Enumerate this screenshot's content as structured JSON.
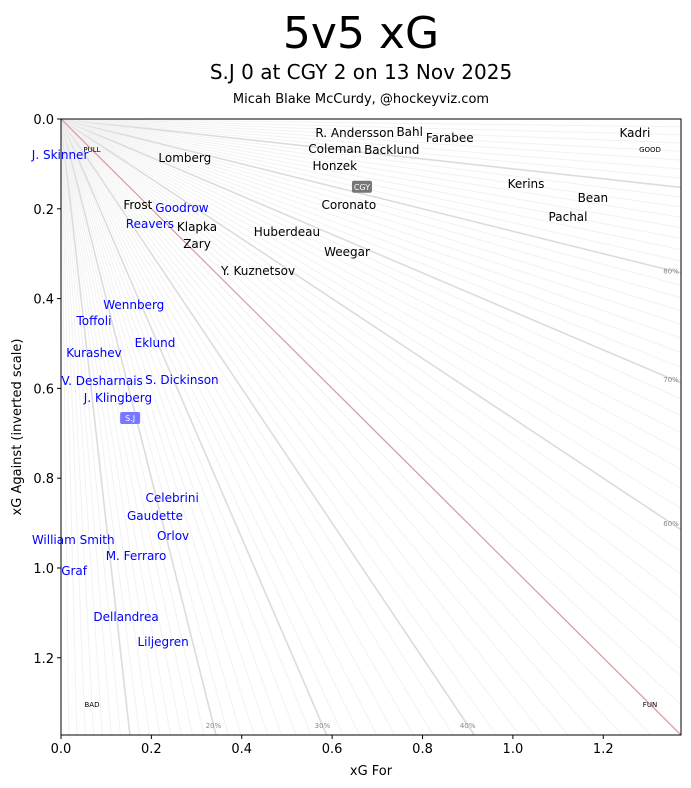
{
  "title": "5v5 xG",
  "subtitle": "S.J 0 at CGY 2 on 13 Nov 2025",
  "byline": "Micah Blake McCurdy, @hockeyviz.com",
  "chart_data": {
    "type": "scatter",
    "xlabel": "xG For",
    "ylabel": "xG Against (inverted scale)",
    "xlim": [
      0,
      1.372
    ],
    "ylim": [
      1.372,
      0
    ],
    "y_inverted": true,
    "xticks": [
      "0.0",
      "0.2",
      "0.4",
      "0.6",
      "0.8",
      "1.0",
      "1.2"
    ],
    "yticks": [
      "0.0",
      "0.2",
      "0.4",
      "0.6",
      "0.8",
      "1.0",
      "1.2"
    ],
    "grid": false,
    "colors": {
      "CGY": "#000000",
      "SJ": "#0000ff",
      "even_line": "#d9a0a0",
      "contour": "#dddddd"
    },
    "corner_labels": {
      "top_left": "PULL",
      "top_right": "GOOD",
      "bottom_left": "BAD",
      "bottom_right": "FUN"
    },
    "percent_labels": [
      {
        "label": "20%",
        "p": 0.2
      },
      {
        "label": "30%",
        "p": 0.3
      },
      {
        "label": "40%",
        "p": 0.4
      },
      {
        "label": "60%",
        "p": 0.6
      },
      {
        "label": "70%",
        "p": 0.7
      },
      {
        "label": "80%",
        "p": 0.8
      }
    ],
    "team_badges": [
      {
        "label": "CGY",
        "team": "CGY",
        "x": 0.666,
        "y": 0.151
      },
      {
        "label": "S.J",
        "team": "SJ",
        "x": 0.153,
        "y": 0.666
      }
    ],
    "series": [
      {
        "name": "CGY",
        "points": [
          {
            "label": "R. Andersson",
            "x": 0.65,
            "y": 0.031
          },
          {
            "label": "Bahl",
            "x": 0.723,
            "y": 0.029
          },
          {
            "label": "Coleman",
            "x": 0.606,
            "y": 0.045
          },
          {
            "label": "Honzek",
            "x": 0.606,
            "y": 0.078
          },
          {
            "label": "Backlund",
            "x": 0.723,
            "y": 0.062
          },
          {
            "label": "Farabee",
            "x": 0.847,
            "y": 0.042
          },
          {
            "label": "Kadri",
            "x": 1.27,
            "y": 0.031
          },
          {
            "label": "Lomberg",
            "x": 0.274,
            "y": 0.087
          },
          {
            "label": "Kerins",
            "x": 1.029,
            "y": 0.145
          },
          {
            "label": "Bean",
            "x": 1.177,
            "y": 0.176
          },
          {
            "label": "Pachal",
            "x": 1.122,
            "y": 0.218
          },
          {
            "label": "Coronato",
            "x": 0.637,
            "y": 0.192
          },
          {
            "label": "Frost",
            "x": 0.17,
            "y": 0.192
          },
          {
            "label": "Klapka",
            "x": 0.301,
            "y": 0.241
          },
          {
            "label": "Zary",
            "x": 0.301,
            "y": 0.274
          },
          {
            "label": "Huberdeau",
            "x": 0.5,
            "y": 0.252
          },
          {
            "label": "Weegar",
            "x": 0.633,
            "y": 0.296
          },
          {
            "label": "Y. Kuznetsov",
            "x": 0.436,
            "y": 0.339
          }
        ]
      },
      {
        "name": "SJ",
        "points": [
          {
            "label": "J. Skinner",
            "x": -0.002,
            "y": 0.08
          },
          {
            "label": "Goodrow",
            "x": 0.241,
            "y": 0.198
          },
          {
            "label": "Reavers",
            "x": 0.241,
            "y": 0.232
          },
          {
            "label": "Wennberg",
            "x": 0.161,
            "y": 0.414
          },
          {
            "label": "Toffoli",
            "x": 0.073,
            "y": 0.443
          },
          {
            "label": "Eklund",
            "x": 0.208,
            "y": 0.499
          },
          {
            "label": "Kurashev",
            "x": 0.073,
            "y": 0.521
          },
          {
            "label": "V. Desharnais",
            "x": 0.091,
            "y": 0.584
          },
          {
            "label": "S. Dickinson",
            "x": 0.241,
            "y": 0.581
          },
          {
            "label": "J. Klingberg",
            "x": 0.126,
            "y": 0.615
          },
          {
            "label": "Celebrini",
            "x": 0.246,
            "y": 0.844
          },
          {
            "label": "Gaudette",
            "x": 0.208,
            "y": 0.884
          },
          {
            "label": "Orlov",
            "x": 0.248,
            "y": 0.929
          },
          {
            "label": "William Smith",
            "x": 0.027,
            "y": 0.938
          },
          {
            "label": "M. Ferraro",
            "x": 0.166,
            "y": 0.947
          },
          {
            "label": "Graf",
            "x": 0.029,
            "y": 1.007
          },
          {
            "label": "Dellandrea",
            "x": 0.144,
            "y": 1.109
          },
          {
            "label": "Liljegren",
            "x": 0.226,
            "y": 1.165
          }
        ]
      }
    ]
  }
}
